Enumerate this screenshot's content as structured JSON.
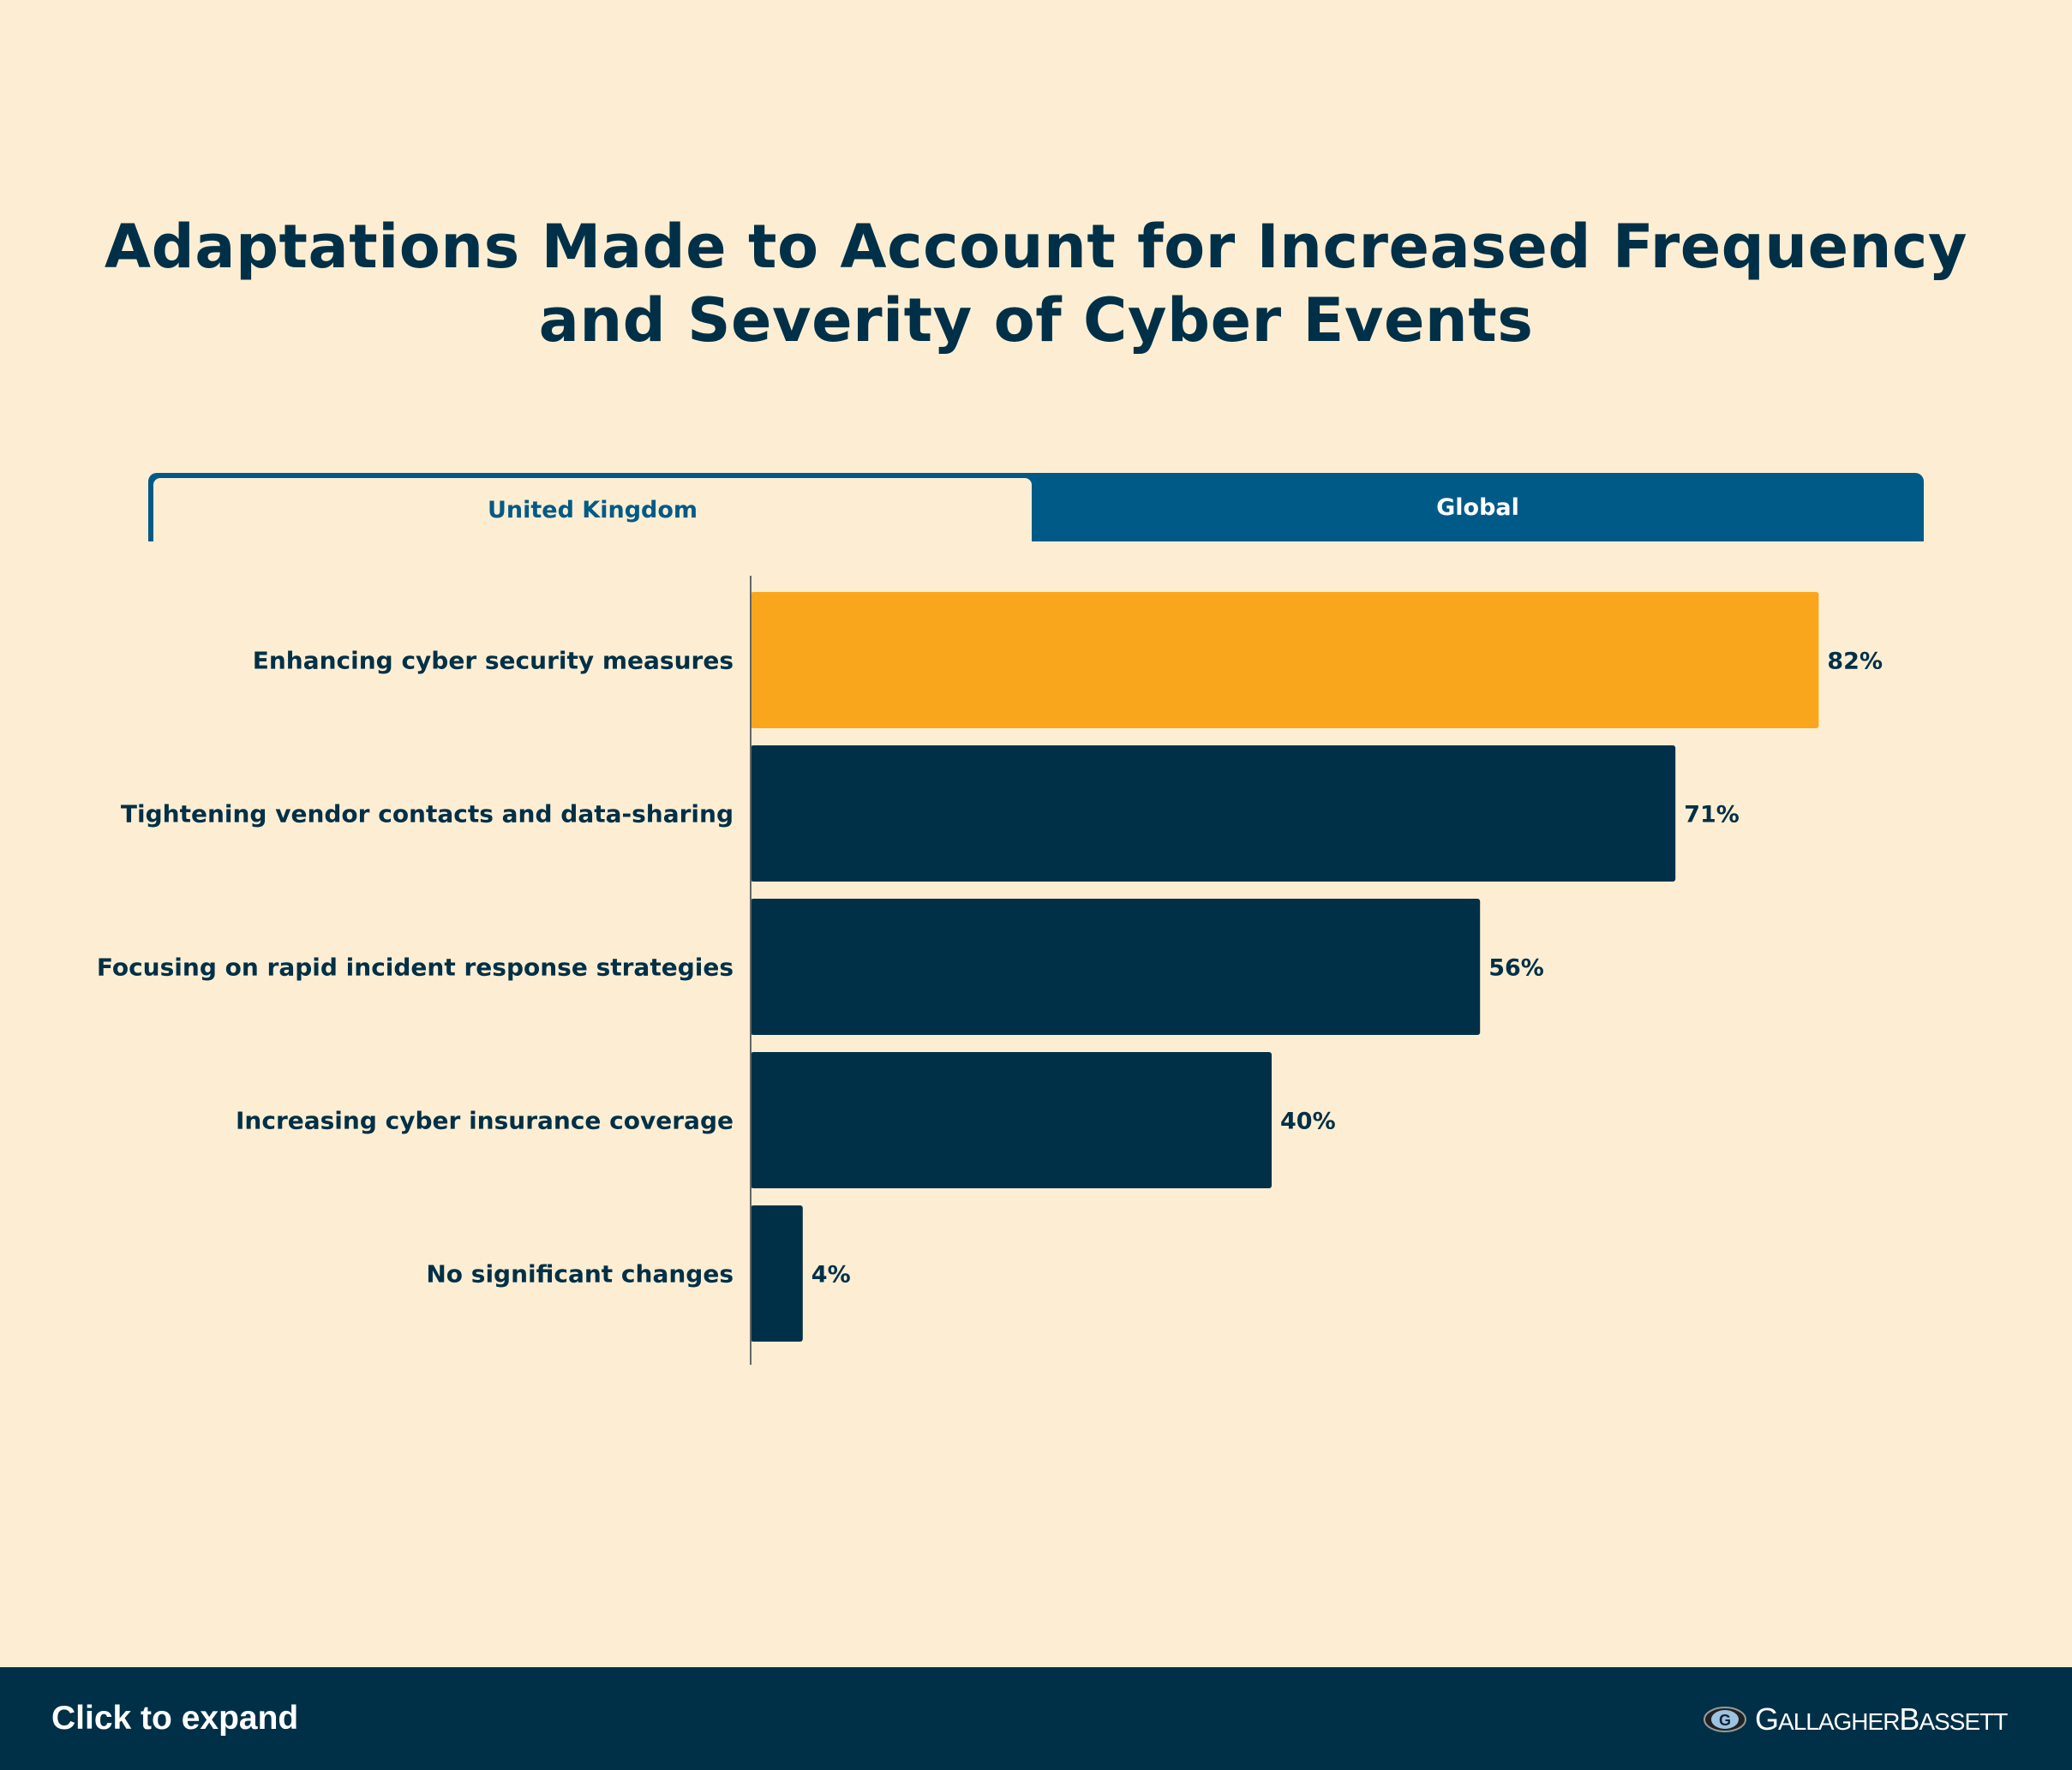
{
  "title_line1": "Adaptations Made to Account for Increased Frequency",
  "title_line2": "and Severity of Cyber Events",
  "tabs": [
    {
      "label": "United Kingdom",
      "active": true
    },
    {
      "label": "Global",
      "active": false
    }
  ],
  "footer": {
    "expand_label": "Click to expand",
    "logo_text": "GALLAGHER BASSETT"
  },
  "colors": {
    "highlight": "#f9a61c",
    "bar": "#003047",
    "tab": "#005a87",
    "background": "#fdeed3"
  },
  "chart_data": {
    "type": "bar",
    "orientation": "horizontal",
    "title": "Adaptations Made to Account for Increased Frequency and Severity of Cyber Events",
    "categories": [
      "Enhancing cyber security measures",
      "Tightening vendor contacts and data-sharing",
      "Focusing on rapid incident response strategies",
      "Increasing cyber insurance coverage",
      "No significant changes"
    ],
    "values": [
      82,
      71,
      56,
      40,
      4
    ],
    "value_labels": [
      "82%",
      "71%",
      "56%",
      "40%",
      "4%"
    ],
    "highlight_index": 0,
    "xlim": [
      0,
      100
    ],
    "grid": false
  }
}
